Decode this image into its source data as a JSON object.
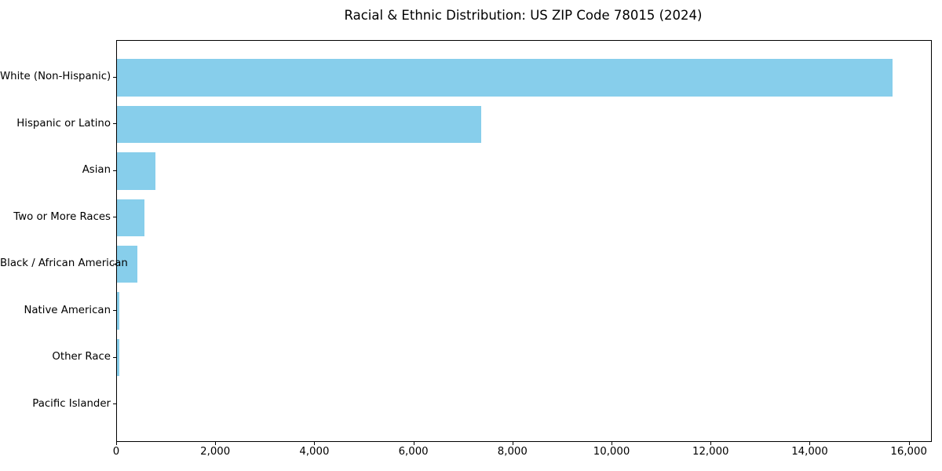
{
  "chart_data": {
    "type": "bar",
    "orientation": "horizontal",
    "title": "Racial & Ethnic Distribution: US ZIP Code 78015 (2024)",
    "categories": [
      "White (Non-Hispanic)",
      "Hispanic or Latino",
      "Asian",
      "Two or More Races",
      "Black / African American",
      "Native American",
      "Other Race",
      "Pacific Islander"
    ],
    "values": [
      15650,
      7350,
      780,
      560,
      415,
      45,
      40,
      0
    ],
    "xlabel": "",
    "ylabel": "",
    "xlim": [
      0,
      16433
    ],
    "x_ticks": [
      0,
      2000,
      4000,
      6000,
      8000,
      10000,
      12000,
      14000,
      16000
    ],
    "x_tick_labels": [
      "0",
      "2,000",
      "4,000",
      "6,000",
      "8,000",
      "10,000",
      "12,000",
      "14,000",
      "16,000"
    ],
    "bar_color": "#87CEEB",
    "spine_color": "#000000",
    "grid": false,
    "legend": null
  }
}
